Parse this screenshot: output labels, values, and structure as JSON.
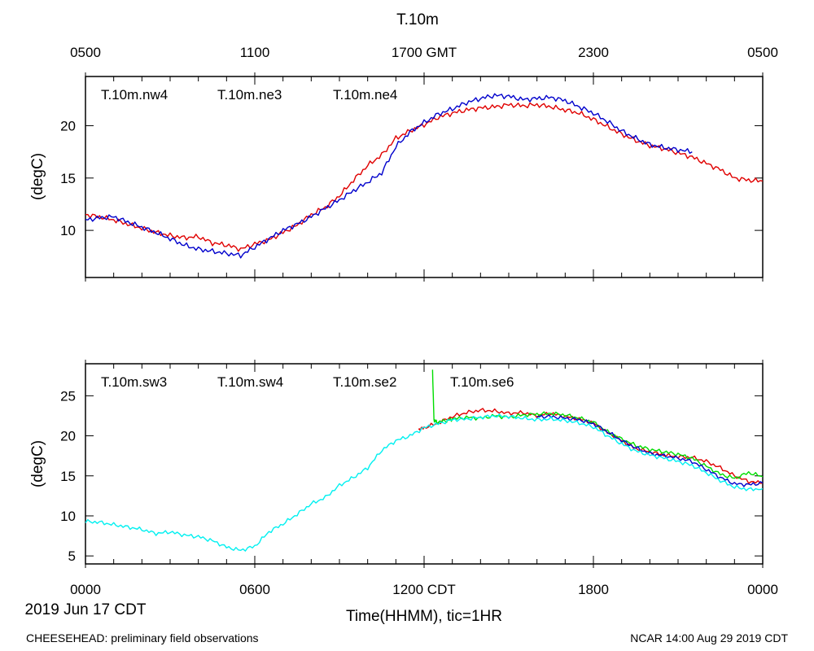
{
  "title": "T.10m",
  "top_axis_labels": [
    "0500",
    "1100",
    "1700 GMT",
    "2300",
    "0500"
  ],
  "bottom_axis_labels": [
    "0000",
    "0600",
    "1200 CDT",
    "1800",
    "0000"
  ],
  "date_label": "2019 Jun 17 CDT",
  "xlabel": "Time(HHMM), tic=1HR",
  "footer_left": "CHEESEHEAD: preliminary field observations",
  "footer_right": "NCAR 14:00 Aug 29 2019 CDT",
  "colors": {
    "red": "#e00000",
    "green": "#00dd00",
    "blue": "#0000cc",
    "cyan": "#00f0f0"
  },
  "chart_data": [
    {
      "type": "line",
      "title": "T.10m",
      "ylabel": "(degC)",
      "xlim": [
        0,
        24
      ],
      "ylim": [
        5.5,
        24.7
      ],
      "yticks": [
        10,
        15,
        20
      ],
      "series": [
        {
          "name": "T.10m.nw4",
          "color": "#e00000",
          "x": [
            0,
            0.5,
            1,
            1.5,
            2,
            2.5,
            3,
            3.5,
            4,
            4.5,
            5,
            5.5,
            6,
            6.5,
            7,
            7.5,
            8,
            8.5,
            9,
            9.5,
            10,
            10.5,
            11,
            11.5,
            12,
            12.5,
            13,
            13.5,
            14,
            14.5,
            15,
            15.5,
            16,
            16.5,
            17,
            17.5,
            18,
            18.5,
            19,
            19.5,
            20,
            20.5,
            21,
            21.5,
            22,
            22.5,
            23,
            23.5,
            24
          ],
          "values": [
            11.5,
            11.3,
            11.0,
            10.6,
            10.2,
            9.8,
            9.5,
            9.3,
            9.4,
            8.8,
            8.6,
            8.2,
            8.7,
            9.1,
            9.8,
            10.5,
            11.5,
            12.2,
            13.3,
            14.8,
            16.2,
            17.2,
            18.8,
            19.5,
            20.1,
            20.8,
            21.2,
            21.5,
            21.7,
            21.8,
            22.0,
            21.9,
            22.0,
            21.8,
            21.5,
            21.2,
            20.6,
            19.9,
            19.2,
            18.6,
            18.1,
            17.8,
            17.4,
            17.0,
            16.4,
            15.8,
            15.0,
            14.8,
            14.7
          ]
        },
        {
          "name": "T.10m.ne3",
          "color": "#00dd00",
          "x": [],
          "values": []
        },
        {
          "name": "T.10m.ne4",
          "color": "#0000cc",
          "x": [
            0,
            0.5,
            1,
            1.5,
            2,
            2.5,
            3,
            3.5,
            4,
            4.5,
            5,
            5.5,
            6,
            6.5,
            7,
            7.5,
            8,
            8.5,
            9,
            9.5,
            10,
            10.5,
            11,
            11.5,
            12,
            12.5,
            13,
            13.5,
            14,
            14.5,
            15,
            15.5,
            16,
            16.5,
            17,
            17.5,
            18,
            18.5,
            19,
            19.5,
            20,
            20.5,
            21,
            21.5
          ],
          "values": [
            11.0,
            11.2,
            11.3,
            10.8,
            10.3,
            9.8,
            9.2,
            8.6,
            8.2,
            8.0,
            7.8,
            7.6,
            8.4,
            9.2,
            10.0,
            10.6,
            11.3,
            12.1,
            12.9,
            13.8,
            14.6,
            15.5,
            18.0,
            19.4,
            20.3,
            21.1,
            21.6,
            22.2,
            22.6,
            22.9,
            22.8,
            22.5,
            22.6,
            22.7,
            22.4,
            21.8,
            21.2,
            20.4,
            19.5,
            18.8,
            18.2,
            17.9,
            17.7,
            17.5
          ]
        }
      ]
    },
    {
      "type": "line",
      "ylabel": "(degC)",
      "xlim": [
        0,
        24
      ],
      "ylim": [
        4,
        29
      ],
      "yticks": [
        5,
        10,
        15,
        20,
        25
      ],
      "series": [
        {
          "name": "T.10m.sw3",
          "color": "#e00000",
          "x": [
            11.8,
            12,
            12.5,
            13,
            13.5,
            14,
            14.5,
            15,
            15.5,
            16,
            16.5,
            17,
            17.5,
            18,
            18.5,
            19,
            19.5,
            20,
            20.5,
            21,
            21.5,
            22,
            22.5,
            23,
            23.5,
            24
          ],
          "values": [
            20.8,
            21.0,
            21.6,
            22.4,
            22.9,
            23.2,
            23.1,
            22.8,
            22.9,
            22.5,
            22.8,
            22.4,
            22.1,
            21.6,
            20.4,
            19.4,
            18.4,
            18.0,
            17.6,
            17.4,
            17.3,
            16.8,
            16.0,
            15.0,
            14.3,
            14.1
          ]
        },
        {
          "name": "T.10m.sw4",
          "color": "#00dd00",
          "x": [
            12.3,
            12.35,
            12.45,
            12.8,
            13,
            13.5,
            14,
            14.5,
            15,
            15.5,
            16,
            16.5,
            17,
            17.5,
            18,
            18.5,
            19,
            19.5,
            20,
            20.5,
            21,
            21.5,
            22,
            22.5,
            23,
            23.5,
            24
          ],
          "values": [
            28.0,
            22.0,
            21.7,
            21.9,
            22.1,
            22.3,
            22.2,
            22.5,
            22.3,
            22.6,
            22.7,
            22.8,
            22.6,
            22.2,
            21.7,
            20.5,
            19.6,
            18.8,
            18.3,
            18.0,
            17.7,
            17.2,
            16.2,
            15.2,
            14.7,
            15.4,
            14.9
          ]
        },
        {
          "name": "T.10m.se2",
          "color": "#0000cc",
          "x": [
            16,
            16.5,
            17,
            17.5,
            18,
            18.5,
            19,
            19.5,
            20,
            20.5,
            21,
            21.5,
            22,
            22.5,
            23,
            23.5,
            24
          ],
          "values": [
            22.4,
            22.4,
            22.2,
            22.0,
            21.5,
            20.5,
            19.4,
            18.5,
            17.8,
            17.5,
            17.2,
            16.8,
            15.8,
            14.8,
            14.0,
            13.9,
            14.1
          ]
        },
        {
          "name": "T.10m.se6",
          "color": "#00f0f0",
          "x": [
            0,
            0.5,
            1,
            1.5,
            2,
            2.5,
            3,
            3.5,
            4,
            4.5,
            5,
            5.5,
            6,
            6.5,
            7,
            7.5,
            8,
            8.5,
            9,
            9.5,
            10,
            10.5,
            11,
            11.5,
            12,
            12.5,
            13,
            13.5,
            14,
            14.5,
            15,
            15.5,
            16,
            16.5,
            17,
            17.5,
            18,
            18.5,
            19,
            19.5,
            20,
            20.5,
            21,
            21.5,
            22,
            22.5,
            23,
            23.5,
            24
          ],
          "values": [
            9.3,
            9.2,
            8.9,
            8.6,
            8.3,
            7.8,
            8.0,
            7.6,
            7.4,
            6.9,
            6.1,
            5.7,
            6.2,
            8.0,
            9.0,
            10.2,
            11.5,
            12.3,
            13.8,
            14.8,
            16.0,
            18.2,
            19.4,
            20.0,
            21.0,
            21.5,
            22.0,
            22.1,
            22.3,
            22.5,
            22.4,
            22.2,
            22.0,
            22.1,
            21.9,
            21.6,
            21.1,
            20.0,
            19.0,
            18.1,
            17.6,
            17.2,
            16.8,
            16.3,
            15.4,
            14.4,
            13.6,
            13.3,
            13.4
          ]
        }
      ]
    }
  ]
}
